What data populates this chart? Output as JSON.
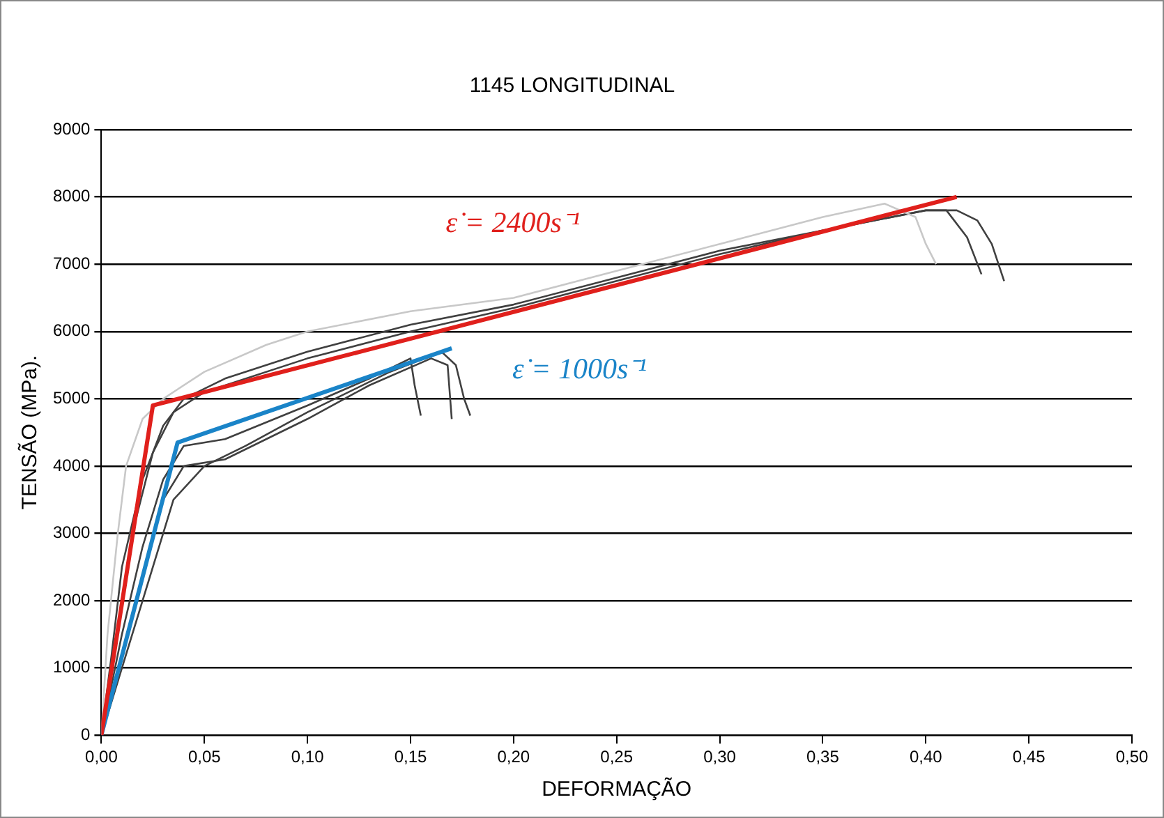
{
  "chart_data": {
    "type": "line",
    "title": "1145 LONGITUDINAL",
    "xlabel": "DEFORMAÇÃO",
    "ylabel": "TENSÃO (MPa).",
    "xlim": [
      0,
      0.5
    ],
    "xticks": [
      {
        "value": 0,
        "label": "0,00"
      },
      {
        "value": 0.05,
        "label": "0,05"
      },
      {
        "value": 0.1,
        "label": "0,10"
      },
      {
        "value": 0.15,
        "label": "0,15"
      },
      {
        "value": 0.2,
        "label": "0,20"
      },
      {
        "value": 0.25,
        "label": "0,25"
      },
      {
        "value": 0.3,
        "label": "0,30"
      },
      {
        "value": 0.35,
        "label": "0,35"
      },
      {
        "value": 0.4,
        "label": "0,40"
      },
      {
        "value": 0.45,
        "label": "0,45"
      },
      {
        "value": 0.5,
        "label": "0,50"
      }
    ],
    "ylim": [
      0,
      9000
    ],
    "yticks": [
      0,
      1000,
      2000,
      3000,
      4000,
      5000,
      6000,
      7000,
      8000,
      9000
    ],
    "grid": "y",
    "legend": false,
    "marker": "none",
    "line_style": "solid",
    "series": [
      {
        "color": "#c8c8c8",
        "x": [
          0,
          0.003,
          0.008,
          0.012,
          0.02,
          0.03,
          0.05,
          0.08,
          0.1,
          0.15,
          0.2,
          0.25,
          0.3,
          0.35,
          0.38,
          0.395,
          0.4,
          0.405
        ],
        "values": [
          0,
          1500,
          3000,
          4000,
          4700,
          5000,
          5400,
          5800,
          6000,
          6300,
          6500,
          6900,
          7300,
          7700,
          7900,
          7700,
          7300,
          7000
        ]
      },
      {
        "color": "#404040",
        "x": [
          0,
          0.005,
          0.01,
          0.02,
          0.03,
          0.04,
          0.06,
          0.1,
          0.15,
          0.2,
          0.25,
          0.3,
          0.35,
          0.4,
          0.41,
          0.42,
          0.427
        ],
        "values": [
          0,
          1200,
          2500,
          3800,
          4600,
          5000,
          5300,
          5700,
          6100,
          6400,
          6800,
          7200,
          7500,
          7800,
          7800,
          7400,
          6850
        ]
      },
      {
        "color": "#404040",
        "x": [
          0,
          0.008,
          0.015,
          0.025,
          0.035,
          0.05,
          0.1,
          0.15,
          0.2,
          0.25,
          0.3,
          0.35,
          0.4,
          0.415,
          0.425,
          0.432,
          0.438
        ],
        "values": [
          0,
          1500,
          3000,
          4200,
          4800,
          5100,
          5600,
          6000,
          6350,
          6750,
          7150,
          7500,
          7800,
          7800,
          7650,
          7300,
          6750
        ]
      },
      {
        "color": "#404040",
        "x": [
          0,
          0.01,
          0.02,
          0.03,
          0.04,
          0.06,
          0.1,
          0.13,
          0.15,
          0.152,
          0.155
        ],
        "values": [
          0,
          1500,
          2800,
          3800,
          4300,
          4400,
          4900,
          5300,
          5600,
          5200,
          4750
        ]
      },
      {
        "color": "#404040",
        "x": [
          0,
          0.015,
          0.03,
          0.04,
          0.06,
          0.1,
          0.13,
          0.16,
          0.168,
          0.17
        ],
        "values": [
          0,
          1800,
          3500,
          4000,
          4100,
          4700,
          5200,
          5600,
          5500,
          4700
        ]
      },
      {
        "color": "#404040",
        "x": [
          0,
          0.02,
          0.035,
          0.05,
          0.07,
          0.1,
          0.14,
          0.165,
          0.172,
          0.176,
          0.179
        ],
        "values": [
          0,
          2000,
          3500,
          4000,
          4300,
          4800,
          5400,
          5700,
          5500,
          5000,
          4750
        ]
      },
      {
        "name": "ε̇ = 2400s⁻¹",
        "color": "#e0201c",
        "x": [
          0,
          0.025,
          0.415
        ],
        "values": [
          0,
          4900,
          8000
        ]
      },
      {
        "name": "ε̇ = 1000s⁻¹",
        "color": "#1a84c8",
        "x": [
          0,
          0.037,
          0.17
        ],
        "values": [
          0,
          4350,
          5750
        ]
      }
    ]
  }
}
